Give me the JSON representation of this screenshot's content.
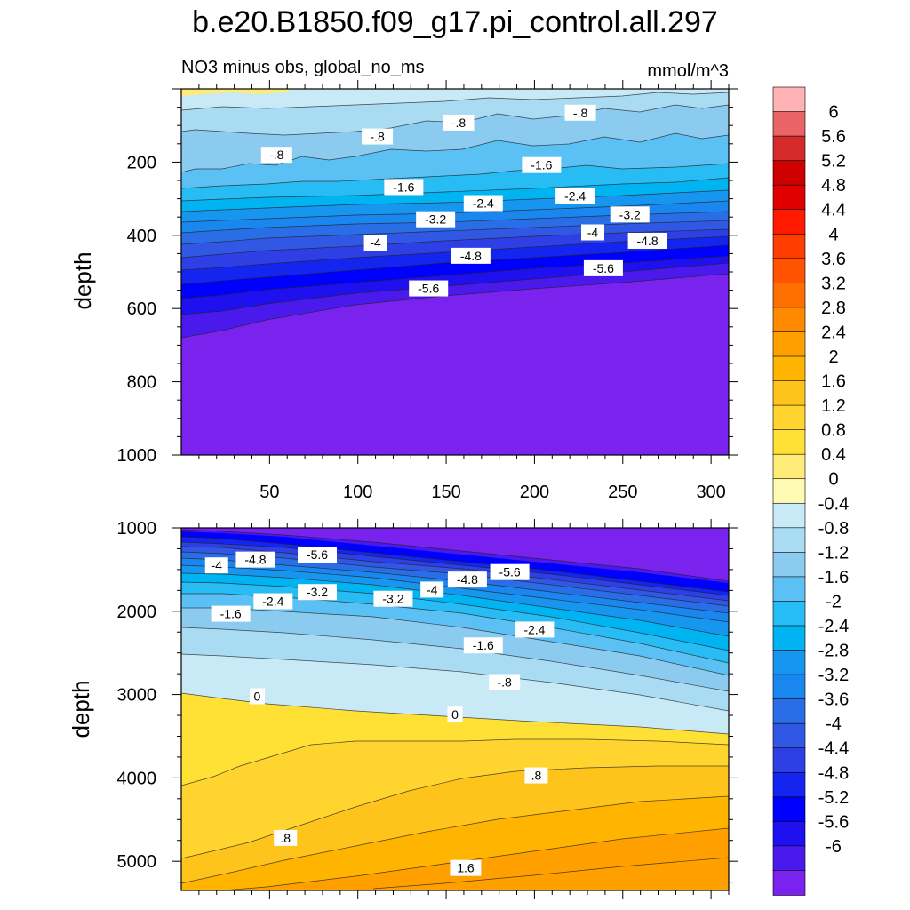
{
  "title": "b.e20.B1850.f09_g17.pi_control.all.297",
  "subtitle_left": "NO3 minus obs, global_no_ms",
  "subtitle_right": "mmol/m^3",
  "colorbar": {
    "labels": [
      "6",
      "5.6",
      "5.2",
      "4.8",
      "4.4",
      "4",
      "3.6",
      "3.2",
      "2.8",
      "2.4",
      "2",
      "1.6",
      "1.2",
      "0.8",
      "0.4",
      "0",
      "-0.4",
      "-0.8",
      "-1.2",
      "-1.6",
      "-2",
      "-2.4",
      "-2.8",
      "-3.2",
      "-3.6",
      "-4",
      "-4.4",
      "-4.8",
      "-5.2",
      "-5.6",
      "-6"
    ],
    "colors": [
      "#FFB2B4",
      "#E96466",
      "#D42A2A",
      "#CF0000",
      "#E00000",
      "#FF1A00",
      "#FF3D00",
      "#FF5300",
      "#FF6E00",
      "#FF8A00",
      "#FFA000",
      "#FFB500",
      "#FFC41C",
      "#FFD42E",
      "#FFE135",
      "#FFEB78",
      "#FFFAB4",
      "#C8E9F6",
      "#A9DBF3",
      "#8CCBF0",
      "#5BC0F4",
      "#28BCF4",
      "#00B4F2",
      "#1696EF",
      "#1A86EF",
      "#2A6EE7",
      "#3058E4",
      "#2E3FE6",
      "#1425F0",
      "#0000FF",
      "#1E10EF",
      "#4A19EB",
      "#7A22EE"
    ]
  },
  "chart_data": [
    {
      "type": "heatmap",
      "name": "upper-panel",
      "title": "NO3 minus obs, global_no_ms",
      "xlabel": "",
      "ylabel": "depth",
      "xlim": [
        0,
        310
      ],
      "ylim": [
        0,
        1000
      ],
      "xticks": [
        "50",
        "100",
        "150",
        "200",
        "250",
        "300"
      ],
      "yticks": [
        "200",
        "400",
        "600",
        "800",
        "1000"
      ],
      "contour_labels": [
        {
          "text": "-.8",
          "x": 54,
          "y": 180
        },
        {
          "text": "-.8",
          "x": 111,
          "y": 130
        },
        {
          "text": "-.8",
          "x": 157,
          "y": 92
        },
        {
          "text": "-.8",
          "x": 226,
          "y": 65
        },
        {
          "text": "-1.6",
          "x": 126,
          "y": 268
        },
        {
          "text": "-1.6",
          "x": 204,
          "y": 208
        },
        {
          "text": "-2.4",
          "x": 171,
          "y": 312
        },
        {
          "text": "-2.4",
          "x": 223,
          "y": 293
        },
        {
          "text": "-3.2",
          "x": 144,
          "y": 356
        },
        {
          "text": "-3.2",
          "x": 254,
          "y": 343
        },
        {
          "text": "-4",
          "x": 110,
          "y": 420
        },
        {
          "text": "-4",
          "x": 233,
          "y": 392
        },
        {
          "text": "-4.8",
          "x": 164,
          "y": 456
        },
        {
          "text": "-4.8",
          "x": 264,
          "y": 415
        },
        {
          "text": "-5.6",
          "x": 140,
          "y": 545
        },
        {
          "text": "-5.6",
          "x": 239,
          "y": 490
        }
      ]
    },
    {
      "type": "heatmap",
      "name": "lower-panel",
      "xlabel": "",
      "ylabel": "depth",
      "xlim": [
        0,
        310
      ],
      "ylim": [
        1000,
        5350
      ],
      "yticks": [
        "1000",
        "2000",
        "3000",
        "4000",
        "5000"
      ],
      "contour_labels": [
        {
          "text": "-4",
          "x": 20,
          "y": 1450
        },
        {
          "text": "-4.8",
          "x": 42,
          "y": 1380
        },
        {
          "text": "-5.6",
          "x": 77,
          "y": 1320
        },
        {
          "text": "-3.2",
          "x": 77,
          "y": 1770
        },
        {
          "text": "-2.4",
          "x": 52,
          "y": 1880
        },
        {
          "text": "-1.6",
          "x": 28,
          "y": 2030
        },
        {
          "text": "-3.2",
          "x": 120,
          "y": 1850
        },
        {
          "text": "-4",
          "x": 142,
          "y": 1740
        },
        {
          "text": "-4.8",
          "x": 162,
          "y": 1620
        },
        {
          "text": "-5.6",
          "x": 186,
          "y": 1530
        },
        {
          "text": "-2.4",
          "x": 200,
          "y": 2220
        },
        {
          "text": "-1.6",
          "x": 171,
          "y": 2410
        },
        {
          "text": "-.8",
          "x": 183,
          "y": 2850
        },
        {
          "text": "0",
          "x": 43,
          "y": 3020
        },
        {
          "text": "0",
          "x": 155,
          "y": 3240
        },
        {
          "text": ".8",
          "x": 201,
          "y": 3970
        },
        {
          "text": ".8",
          "x": 59,
          "y": 4720
        },
        {
          "text": "1.6",
          "x": 161,
          "y": 5080
        }
      ]
    }
  ]
}
